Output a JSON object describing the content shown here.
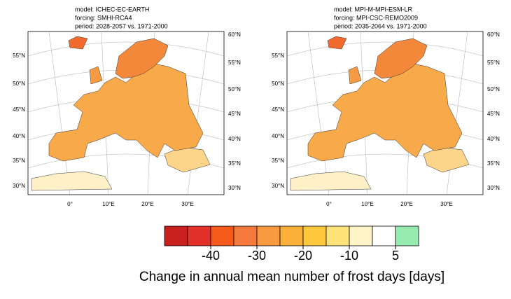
{
  "panels": [
    {
      "header": [
        "model:  ICHEC-EC-EARTH",
        "forcing: SMHI-RCA4",
        "period:  2028-2057 vs. 1971-2000"
      ],
      "lat_left": [
        "55°N",
        "50°N",
        "45°N",
        "40°N",
        "35°N",
        "30°N"
      ],
      "lat_right": [
        "60°N",
        "55°N",
        "50°N",
        "45°N",
        "40°N",
        "35°N",
        "30°N"
      ],
      "lon": [
        "0°",
        "10°E",
        "20°E",
        "30°E"
      ]
    },
    {
      "header": [
        "model:  MPI-M-MPI-ESM-LR",
        "forcing: MPI-CSC-REMO2009",
        "period:  2035-2064 vs. 1971-2000"
      ],
      "lat_left": [
        "55°N",
        "50°N",
        "45°N",
        "40°N",
        "35°N",
        "30°N"
      ],
      "lat_right": [
        "60°N",
        "55°N",
        "50°N",
        "45°N",
        "40°N",
        "35°N",
        "30°N"
      ],
      "lon": [
        "0°",
        "10°E",
        "20°E",
        "30°E"
      ]
    }
  ],
  "colorbar": {
    "colors": [
      "#c8201e",
      "#e3312a",
      "#f55a1a",
      "#f77a3c",
      "#f99a40",
      "#fbb03a",
      "#fdc83e",
      "#fee27a",
      "#fff3c8",
      "#ffffff",
      "#98ebb0"
    ],
    "ticks": [
      -40,
      -30,
      -20,
      -10,
      5
    ],
    "label": "Change in annual mean number of frost days [days]"
  }
}
